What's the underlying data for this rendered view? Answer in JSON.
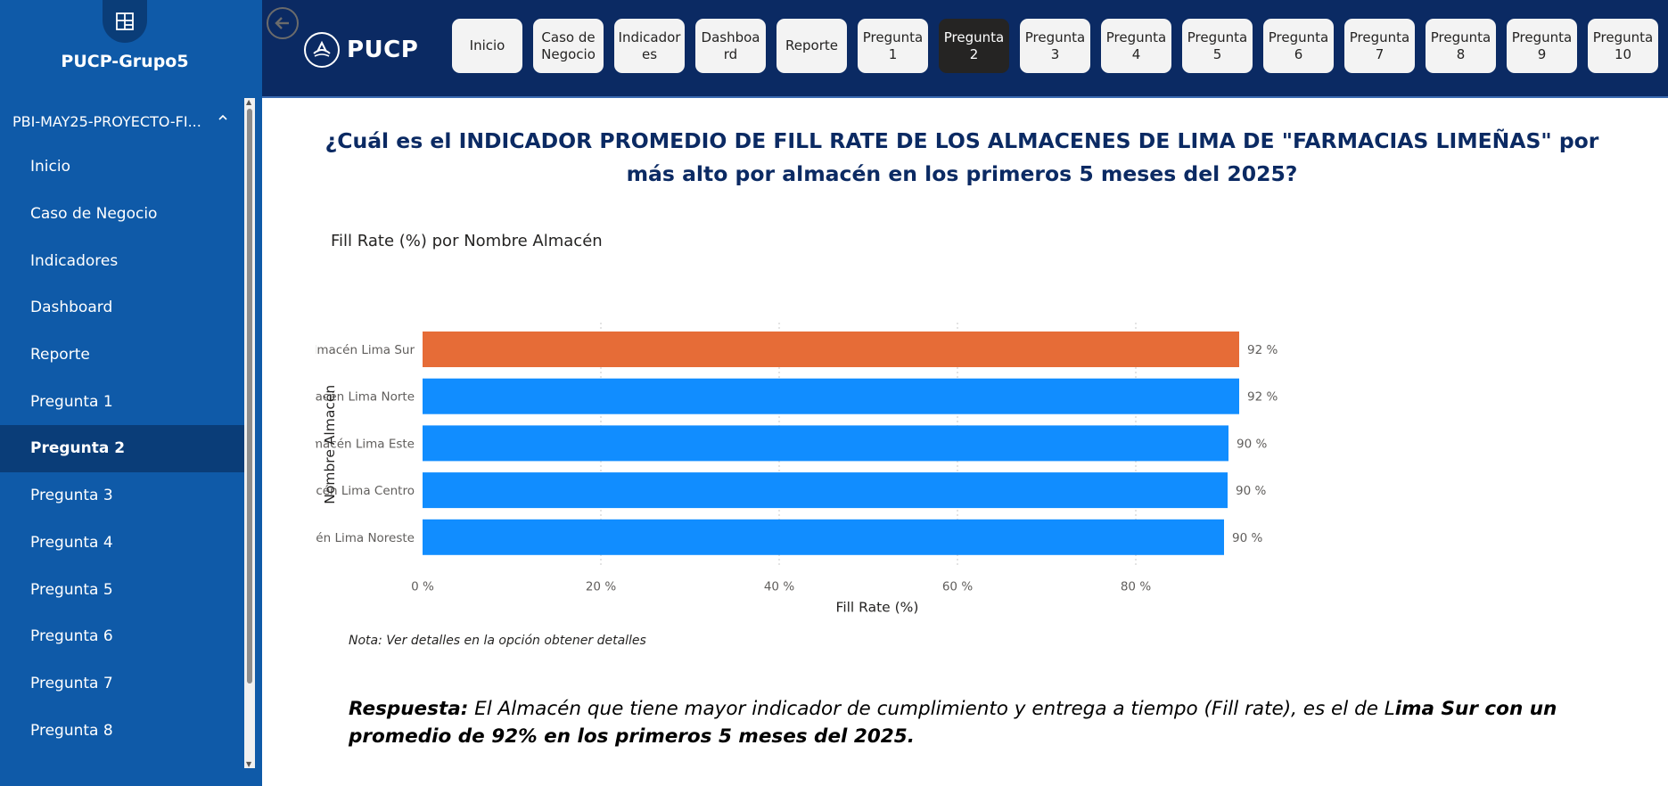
{
  "sidebar": {
    "workspace_icon": "workspace-icon",
    "workspace_name": "PUCP-Grupo5",
    "project_name": "PBI-MAY25-PROYECTO-FI...",
    "items": [
      {
        "label": "Inicio"
      },
      {
        "label": "Caso de Negocio"
      },
      {
        "label": "Indicadores"
      },
      {
        "label": "Dashboard"
      },
      {
        "label": "Reporte"
      },
      {
        "label": "Pregunta 1"
      },
      {
        "label": "Pregunta 2"
      },
      {
        "label": "Pregunta 3"
      },
      {
        "label": "Pregunta 4"
      },
      {
        "label": "Pregunta 5"
      },
      {
        "label": "Pregunta 6"
      },
      {
        "label": "Pregunta 7"
      },
      {
        "label": "Pregunta 8"
      }
    ],
    "active_index": 6
  },
  "header": {
    "logo_text": "PUCP",
    "tabs": [
      {
        "label": "Inicio"
      },
      {
        "label": "Caso de Negocio"
      },
      {
        "label": "Indicadores"
      },
      {
        "label": "Dashboard"
      },
      {
        "label": "Reporte"
      },
      {
        "label": "Pregunta 1"
      },
      {
        "label": "Pregunta 2"
      },
      {
        "label": "Pregunta 3"
      },
      {
        "label": "Pregunta 4"
      },
      {
        "label": "Pregunta 5"
      },
      {
        "label": "Pregunta 6"
      },
      {
        "label": "Pregunta 7"
      },
      {
        "label": "Pregunta 8"
      },
      {
        "label": "Pregunta 9"
      },
      {
        "label": "Pregunta 10"
      }
    ],
    "active_tab_index": 6
  },
  "main": {
    "question": "¿Cuál es el INDICADOR PROMEDIO DE FILL RATE DE LOS ALMACENES  DE LIMA DE \"FARMACIAS LIMEÑAS\" por más alto por almacén en los primeros 5 meses del 2025?",
    "note": "Nota: Ver detalles en la opción obtener detalles",
    "answer_label": "Respuesta:",
    "answer_text": " El Almacén que tiene mayor indicador de cumplimiento y entrega a tiempo (Fill rate), es el de L",
    "answer_bold": "ima Sur con un promedio de 92% en los primeros 5 meses del 2025."
  },
  "chart_data": {
    "type": "bar",
    "orientation": "horizontal",
    "title": "Fill Rate (%) por Nombre Almacén",
    "xlabel": "Fill Rate (%)",
    "ylabel": "Nombre Almacén",
    "categories": [
      "Almacén Lima Sur",
      "Almacén Lima Norte",
      "Almacén Lima Este",
      "Almacén Lima Centro",
      "Almacén Lima Noreste"
    ],
    "values": [
      91.6,
      91.6,
      90.4,
      90.3,
      89.9
    ],
    "data_labels": [
      "92 %",
      "92 %",
      "90 %",
      "90 %",
      "90 %"
    ],
    "xlim": [
      0,
      100
    ],
    "xticks": [
      0,
      20,
      40,
      60,
      80
    ],
    "xtick_labels": [
      "0 %",
      "20 %",
      "40 %",
      "60 %",
      "80 %"
    ],
    "bar_colors": [
      "#e66c37",
      "#118dff",
      "#118dff",
      "#118dff",
      "#118dff"
    ],
    "grid": "vertical dotted"
  },
  "colors": {
    "sidebar_bg": "#0f5aa8",
    "sidebar_active": "#0a3d78",
    "header_bg": "#0b2a63",
    "question_text": "#0b2a63",
    "highlight_bar": "#e66c37",
    "default_bar": "#118dff"
  }
}
